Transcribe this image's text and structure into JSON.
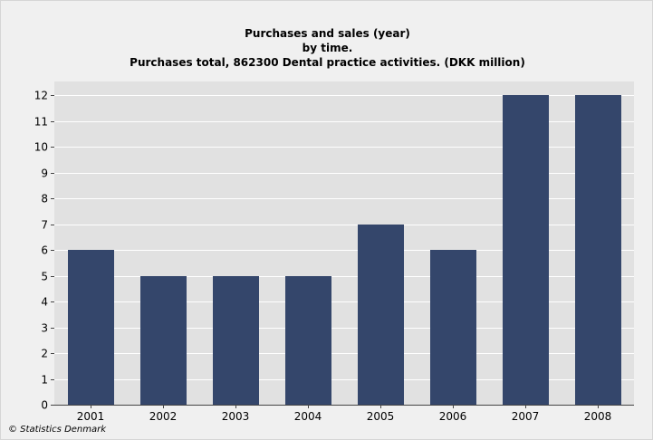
{
  "chart_data": {
    "type": "bar",
    "title_lines": [
      "Purchases and sales (year)",
      "by time.",
      "Purchases total, 862300 Dental practice activities. (DKK million)"
    ],
    "categories": [
      "2001",
      "2002",
      "2003",
      "2004",
      "2005",
      "2006",
      "2007",
      "2008"
    ],
    "values": [
      6,
      5,
      5,
      5,
      7,
      6,
      12,
      12
    ],
    "ylim": [
      0,
      12
    ],
    "yticks": [
      0,
      1,
      2,
      3,
      4,
      5,
      6,
      7,
      8,
      9,
      10,
      11,
      12
    ],
    "grid": true,
    "bar_color": "#34466b",
    "plot_background": "#e1e1e1",
    "gridline_color": "#ffffff"
  },
  "credit": "© Statistics Denmark"
}
